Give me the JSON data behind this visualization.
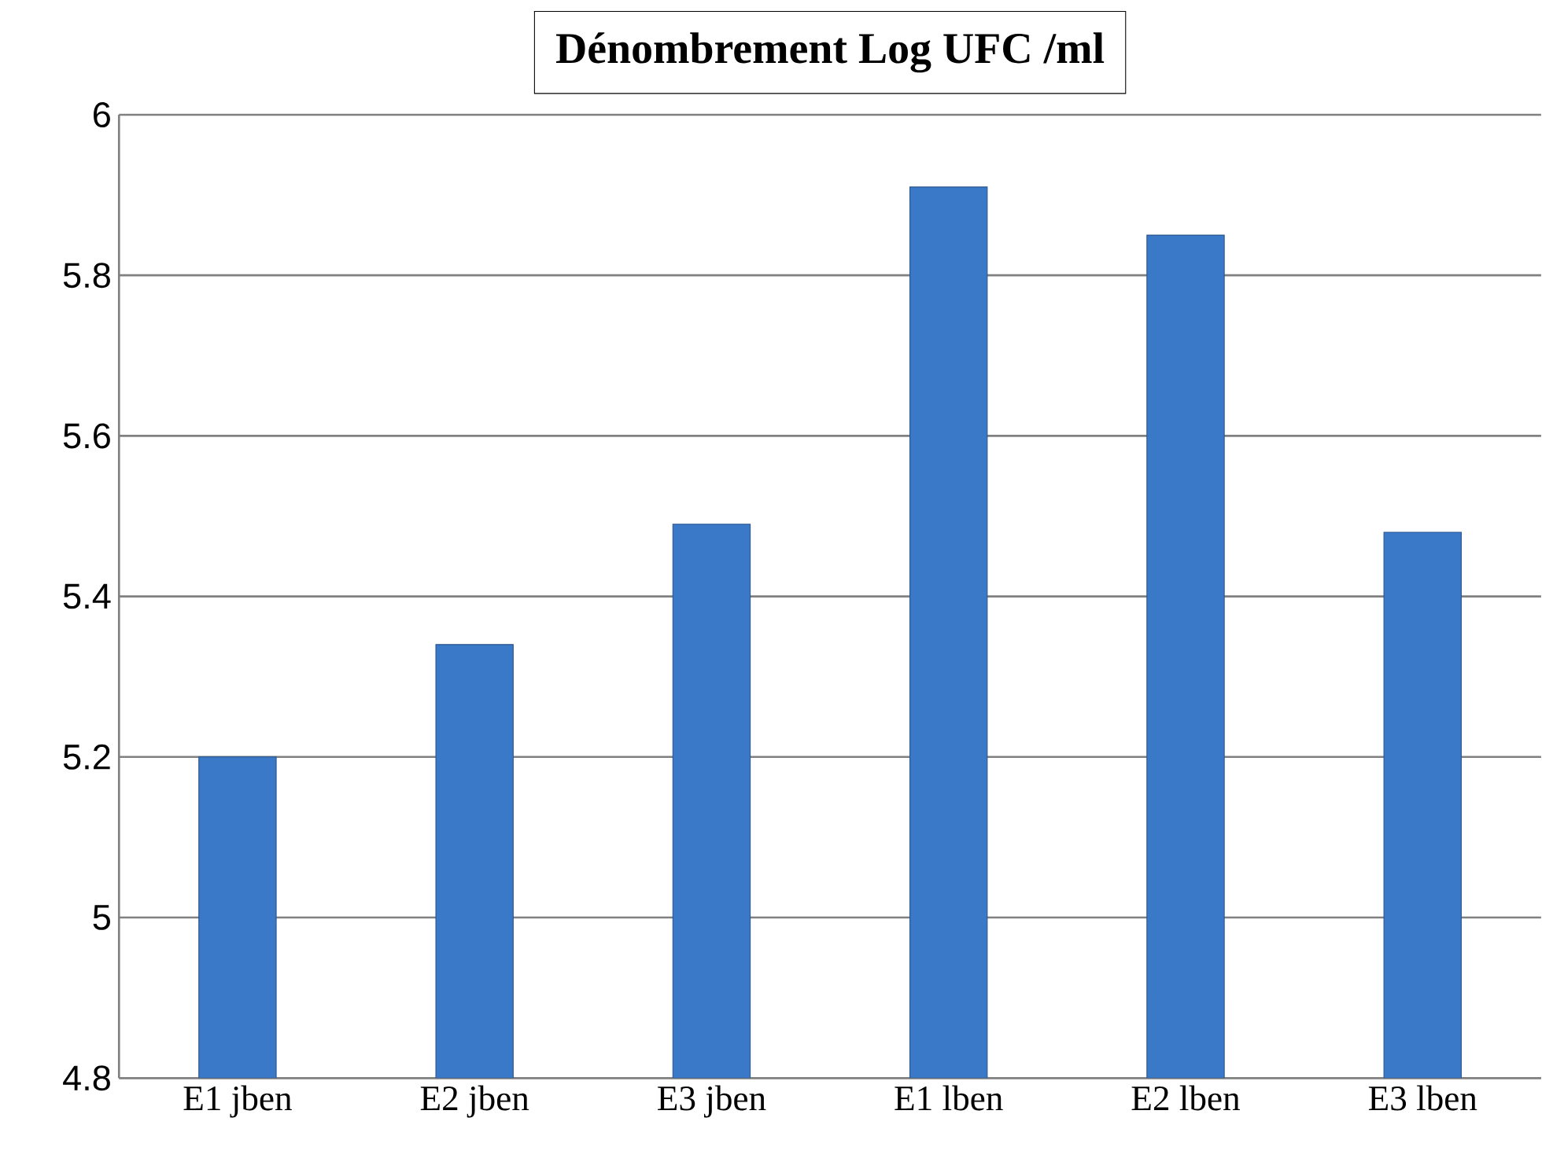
{
  "chart_data": {
    "type": "bar",
    "title": "Dénombrement Log UFC /ml",
    "categories": [
      "E1 jben",
      "E2 jben",
      "E3 jben",
      "E1 lben",
      "E2 lben",
      "E3 lben"
    ],
    "values": [
      5.2,
      5.34,
      5.49,
      5.91,
      5.85,
      5.48
    ],
    "color": "#3a78c8",
    "ylim": [
      4.8,
      6
    ],
    "yticks": [
      4.8,
      5,
      5.2,
      5.4,
      5.6,
      5.8,
      6
    ],
    "grid": "y"
  }
}
